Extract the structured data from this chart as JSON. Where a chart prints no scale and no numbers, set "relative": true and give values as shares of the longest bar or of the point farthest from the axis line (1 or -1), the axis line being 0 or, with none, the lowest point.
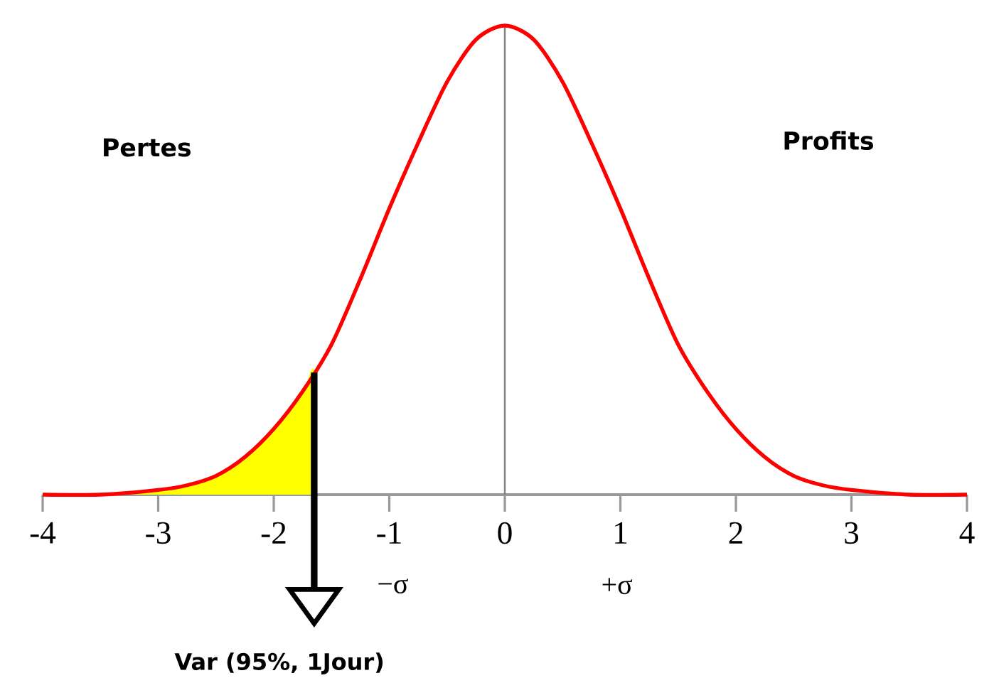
{
  "chart_data": {
    "type": "line",
    "relative": true,
    "xlim": [
      -4,
      4
    ],
    "xticks": [
      -4,
      -3,
      -2,
      -1,
      0,
      1,
      2,
      3,
      4
    ],
    "series": [
      {
        "type": "area",
        "color": "#ffff00",
        "x": [
          -4,
          -3.5,
          -3,
          -2.75,
          -2.5,
          -2.25,
          -2,
          -1.75,
          -1.65
        ],
        "values": [
          0,
          0.0,
          0.01,
          0.02,
          0.04,
          0.08,
          0.14,
          0.22,
          0.26
        ]
      },
      {
        "type": "line",
        "color": "#ff0000",
        "x": [
          -4,
          -3.5,
          -3,
          -2.75,
          -2.5,
          -2.25,
          -2,
          -1.75,
          -1.5,
          -1.25,
          -1,
          -0.75,
          -0.5,
          -0.25,
          0,
          0.25,
          0.5,
          0.75,
          1,
          1.25,
          1.5,
          1.75,
          2,
          2.25,
          2.5,
          2.75,
          3,
          3.5,
          4
        ],
        "values": [
          0,
          0.0,
          0.01,
          0.02,
          0.04,
          0.08,
          0.14,
          0.22,
          0.32,
          0.46,
          0.61,
          0.75,
          0.88,
          0.97,
          1,
          0.97,
          0.88,
          0.75,
          0.61,
          0.46,
          0.32,
          0.22,
          0.14,
          0.08,
          0.04,
          0.02,
          0.01,
          0.0,
          0
        ]
      }
    ],
    "ref_lines": [
      {
        "axis": "x",
        "value": 0,
        "color": "#808080"
      }
    ],
    "annotations": [
      "Pertes",
      "Profits",
      "−σ",
      "+σ",
      "Var (95%, 1Jour)"
    ]
  }
}
